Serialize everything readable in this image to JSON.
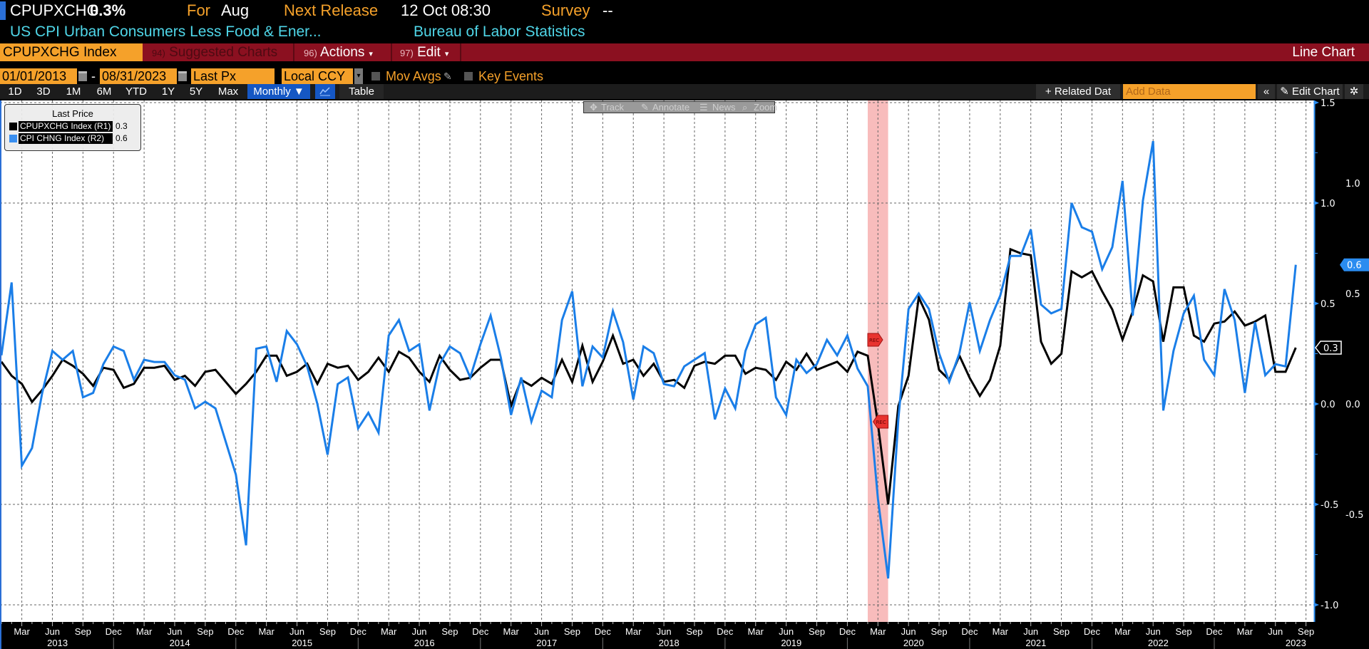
{
  "header": {
    "ticker": "CPUPXCHG",
    "value": "0.3%",
    "for_label": "For",
    "for_value": "Aug",
    "next_release_label": "Next Release",
    "next_release_value": "12 Oct 08:30",
    "survey_label": "Survey",
    "survey_value": "--",
    "description": "US CPI Urban Consumers Less Food & Ener...",
    "source": "Bureau of Labor Statistics"
  },
  "menubar": {
    "security": "CPUPXCHG Index",
    "suggested_num": "94)",
    "suggested": "Suggested Charts",
    "actions_num": "96)",
    "actions": "Actions",
    "edit_num": "97)",
    "edit": "Edit",
    "caret": "▾",
    "chart_type": "Line Chart"
  },
  "settings": {
    "start_date": "01/01/2013",
    "date_sep": "-",
    "end_date": "08/31/2023",
    "field": "Last Px",
    "currency": "Local CCY",
    "dropdown_arrow": "▾",
    "mov_avgs": "Mov Avgs",
    "key_events": "Key Events"
  },
  "periods": [
    "1D",
    "3D",
    "1M",
    "6M",
    "YTD",
    "1Y",
    "5Y",
    "Max"
  ],
  "frequency": "Monthly ▼",
  "table": "Table",
  "right_tools": {
    "related": "+ Related Dat",
    "add_data_placeholder": "Add Data",
    "collapse": "«",
    "edit_chart": "✎ Edit Chart",
    "settings": "✲"
  },
  "chart_tools": {
    "track": "Track",
    "annotate": "Annotate",
    "news": "News",
    "zoom": "Zoom"
  },
  "legend": {
    "title": "Last Price",
    "items": [
      {
        "name": "CPUPXCHG Index  (R1)",
        "value": "0.3"
      },
      {
        "name": "CPI CHNG Index  (R2)",
        "value": "0.6"
      }
    ]
  },
  "colors": {
    "series1": "#000000",
    "series2": "#1a7ee8",
    "recession": "#f8bcbc",
    "recession_marker": "#e8332f",
    "accent_orange": "#f5a12a",
    "menu_red": "#8b1020",
    "axis_blue": "#2a8cf0"
  },
  "chart_data": {
    "type": "line",
    "title": "CPUPXCHG Index / CPI CHNG Index",
    "frequency": "monthly",
    "x_start": "2013-01",
    "x_end": "2023-08",
    "x_tick_start": "2013-03",
    "x_tick_end": "2023-09",
    "x_tick_months": [
      "Mar",
      "Jun",
      "Sep",
      "Dec"
    ],
    "years": [
      "2013",
      "2014",
      "2015",
      "2016",
      "2017",
      "2018",
      "2019",
      "2020",
      "2021",
      "2022",
      "2023"
    ],
    "grid": true,
    "legend_position": "top-left",
    "y_axes": [
      {
        "name": "R1",
        "range": [
          -1.0,
          1.5
        ],
        "ticks": [
          1.5,
          1.0,
          0.5,
          0.0,
          -0.5,
          -1.0
        ]
      },
      {
        "name": "R2",
        "range": [
          -1.0,
          1.3
        ],
        "ticks": [
          1.0,
          0.5,
          0.0,
          -0.5
        ]
      }
    ],
    "series": [
      {
        "name": "CPUPXCHG Index (R1)",
        "axis": "R1",
        "last_label": "0.3",
        "values": [
          0.21,
          0.14,
          0.1,
          0.01,
          0.07,
          0.14,
          0.22,
          0.19,
          0.15,
          0.09,
          0.18,
          0.17,
          0.08,
          0.1,
          0.18,
          0.18,
          0.19,
          0.12,
          0.14,
          0.09,
          0.16,
          0.17,
          0.11,
          0.05,
          0.1,
          0.16,
          0.24,
          0.24,
          0.14,
          0.16,
          0.2,
          0.1,
          0.2,
          0.18,
          0.19,
          0.12,
          0.16,
          0.23,
          0.16,
          0.26,
          0.23,
          0.16,
          0.11,
          0.24,
          0.17,
          0.12,
          0.13,
          0.18,
          0.22,
          0.22,
          -0.01,
          0.12,
          0.09,
          0.13,
          0.1,
          0.22,
          0.11,
          0.29,
          0.11,
          0.21,
          0.34,
          0.2,
          0.22,
          0.14,
          0.2,
          0.11,
          0.12,
          0.08,
          0.19,
          0.21,
          0.2,
          0.24,
          0.24,
          0.15,
          0.18,
          0.17,
          0.12,
          0.21,
          0.17,
          0.25,
          0.17,
          0.19,
          0.21,
          0.16,
          0.26,
          0.24,
          -0.1,
          -0.5,
          -0.01,
          0.14,
          0.53,
          0.42,
          0.17,
          0.12,
          0.24,
          0.13,
          0.04,
          0.12,
          0.29,
          0.77,
          0.75,
          0.74,
          0.31,
          0.2,
          0.25,
          0.66,
          0.63,
          0.66,
          0.56,
          0.47,
          0.32,
          0.46,
          0.64,
          0.61,
          0.31,
          0.58,
          0.58,
          0.34,
          0.31,
          0.4,
          0.41,
          0.46,
          0.39,
          0.41,
          0.44,
          0.16,
          0.16,
          0.28
        ]
      },
      {
        "name": "CPI CHNG Index (R2)",
        "axis": "R2",
        "last_label": "0.6",
        "values": [
          0.22,
          0.55,
          -0.28,
          -0.2,
          0.05,
          0.24,
          0.2,
          0.24,
          0.03,
          0.05,
          0.18,
          0.26,
          0.24,
          0.11,
          0.2,
          0.19,
          0.19,
          0.13,
          0.11,
          -0.02,
          0.01,
          -0.02,
          -0.17,
          -0.32,
          -0.64,
          0.25,
          0.26,
          0.1,
          0.33,
          0.27,
          0.17,
          0.0,
          -0.23,
          0.09,
          0.12,
          -0.11,
          -0.04,
          -0.13,
          0.31,
          0.38,
          0.24,
          0.27,
          -0.03,
          0.18,
          0.26,
          0.23,
          0.12,
          0.27,
          0.4,
          0.21,
          -0.05,
          0.12,
          -0.08,
          0.06,
          0.03,
          0.38,
          0.51,
          0.08,
          0.26,
          0.21,
          0.42,
          0.28,
          0.02,
          0.26,
          0.23,
          0.09,
          0.08,
          0.17,
          0.2,
          0.23,
          -0.07,
          0.07,
          -0.02,
          0.24,
          0.36,
          0.39,
          0.03,
          -0.05,
          0.2,
          0.14,
          0.18,
          0.29,
          0.22,
          0.31,
          0.16,
          0.08,
          -0.43,
          -0.79,
          -0.07,
          0.43,
          0.5,
          0.43,
          0.23,
          0.1,
          0.23,
          0.46,
          0.24,
          0.38,
          0.49,
          0.67,
          0.67,
          0.79,
          0.45,
          0.41,
          0.43,
          0.91,
          0.8,
          0.78,
          0.61,
          0.71,
          1.01,
          0.4,
          0.92,
          1.19,
          -0.03,
          0.24,
          0.41,
          0.49,
          0.2,
          0.13,
          0.52,
          0.38,
          0.05,
          0.37,
          0.13,
          0.18,
          0.17,
          0.63
        ]
      }
    ],
    "events": [
      {
        "label": "REC",
        "start": "2020-02",
        "end": "2020-04"
      }
    ]
  }
}
